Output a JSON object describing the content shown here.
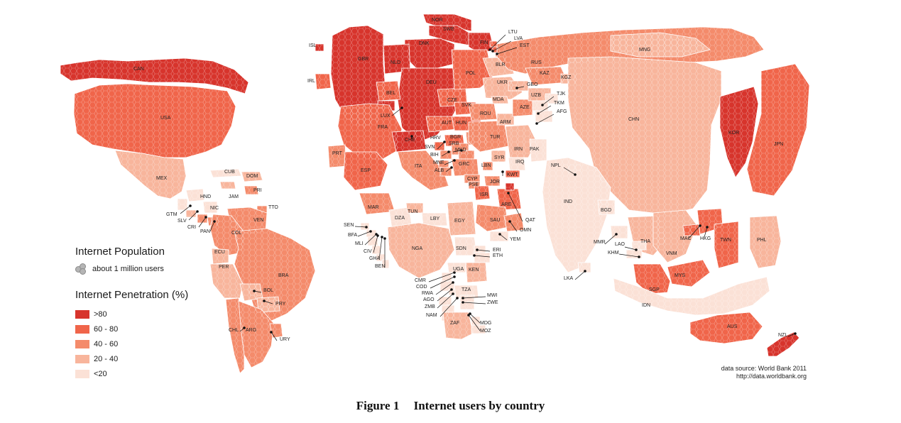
{
  "colors": {
    "gt80": "#d7342c",
    "60_80": "#f0654a",
    "40_60": "#f48b6b",
    "20_40": "#f8b59c",
    "lt20": "#fbe1d6"
  },
  "legend": {
    "population_title": "Internet Population",
    "population_item": "about 1 million users",
    "penetration_title": "Internet Penetration (%)",
    "items": [
      {
        "label": ">80",
        "color": "#d7342c"
      },
      {
        "label": "60 - 80",
        "color": "#f0654a"
      },
      {
        "label": "40 - 60",
        "color": "#f48b6b"
      },
      {
        "label": "20 - 40",
        "color": "#f8b59c"
      },
      {
        "label": "<20",
        "color": "#fbe1d6"
      }
    ]
  },
  "source": {
    "line1": "data source: World Bank 2011",
    "line2": "http://data.worldbank.org"
  },
  "caption": {
    "number": "Figure 1",
    "title": "Internet users by country"
  },
  "countries": [
    {
      "code": "CAN",
      "cls": "gt80"
    },
    {
      "code": "USA",
      "cls": "60_80"
    },
    {
      "code": "MEX",
      "cls": "20_40"
    },
    {
      "code": "CUB",
      "cls": "lt20"
    },
    {
      "code": "DOM",
      "cls": "20_40"
    },
    {
      "code": "JAM",
      "cls": "20_40"
    },
    {
      "code": "PRI",
      "cls": "40_60"
    },
    {
      "code": "HND",
      "cls": "lt20"
    },
    {
      "code": "NIC",
      "cls": "lt20"
    },
    {
      "code": "GTM",
      "cls": "lt20"
    },
    {
      "code": "SLV",
      "cls": "20_40"
    },
    {
      "code": "CRI",
      "cls": "40_60"
    },
    {
      "code": "PAN",
      "cls": "40_60"
    },
    {
      "code": "TTO",
      "cls": "40_60"
    },
    {
      "code": "VEN",
      "cls": "40_60"
    },
    {
      "code": "COL",
      "cls": "40_60"
    },
    {
      "code": "ECU",
      "cls": "20_40"
    },
    {
      "code": "PER",
      "cls": "20_40"
    },
    {
      "code": "BRA",
      "cls": "40_60"
    },
    {
      "code": "BOL",
      "cls": "20_40"
    },
    {
      "code": "PRY",
      "cls": "20_40"
    },
    {
      "code": "CHL",
      "cls": "40_60"
    },
    {
      "code": "ARG",
      "cls": "40_60"
    },
    {
      "code": "URY",
      "cls": "40_60"
    },
    {
      "code": "ISL",
      "cls": "gt80"
    },
    {
      "code": "IRL",
      "cls": "60_80"
    },
    {
      "code": "GBR",
      "cls": "gt80"
    },
    {
      "code": "NOR",
      "cls": "gt80"
    },
    {
      "code": "SWE",
      "cls": "gt80"
    },
    {
      "code": "DNK",
      "cls": "gt80"
    },
    {
      "code": "FIN",
      "cls": "gt80"
    },
    {
      "code": "NLD",
      "cls": "gt80"
    },
    {
      "code": "DEU",
      "cls": "gt80"
    },
    {
      "code": "BEL",
      "cls": "60_80"
    },
    {
      "code": "LUX",
      "cls": "gt80"
    },
    {
      "code": "FRA",
      "cls": "60_80"
    },
    {
      "code": "CHE",
      "cls": "gt80"
    },
    {
      "code": "AUT",
      "cls": "60_80"
    },
    {
      "code": "CZE",
      "cls": "60_80"
    },
    {
      "code": "POL",
      "cls": "60_80"
    },
    {
      "code": "SVK",
      "cls": "60_80"
    },
    {
      "code": "HUN",
      "cls": "60_80"
    },
    {
      "code": "PRT",
      "cls": "40_60"
    },
    {
      "code": "ESP",
      "cls": "60_80"
    },
    {
      "code": "ITA",
      "cls": "40_60"
    },
    {
      "code": "LTU",
      "cls": "60_80"
    },
    {
      "code": "LVA",
      "cls": "60_80"
    },
    {
      "code": "EST",
      "cls": "60_80"
    },
    {
      "code": "BLR",
      "cls": "20_40"
    },
    {
      "code": "RUS",
      "cls": "40_60"
    },
    {
      "code": "UKR",
      "cls": "20_40"
    },
    {
      "code": "MDA",
      "cls": "20_40"
    },
    {
      "code": "ROU",
      "cls": "40_60"
    },
    {
      "code": "BGR",
      "cls": "40_60"
    },
    {
      "code": "HRV",
      "cls": "60_80"
    },
    {
      "code": "SVN",
      "cls": "60_80"
    },
    {
      "code": "SRB",
      "cls": "40_60"
    },
    {
      "code": "BIH",
      "cls": "40_60"
    },
    {
      "code": "MNE",
      "cls": "40_60"
    },
    {
      "code": "MKD",
      "cls": "40_60"
    },
    {
      "code": "ALB",
      "cls": "40_60"
    },
    {
      "code": "GRC",
      "cls": "40_60"
    },
    {
      "code": "TUR",
      "cls": "40_60"
    },
    {
      "code": "CYP",
      "cls": "40_60"
    },
    {
      "code": "GEO",
      "cls": "20_40"
    },
    {
      "code": "ARM",
      "cls": "20_40"
    },
    {
      "code": "AZE",
      "cls": "40_60"
    },
    {
      "code": "KAZ",
      "cls": "40_60"
    },
    {
      "code": "KGZ",
      "cls": "20_40"
    },
    {
      "code": "UZB",
      "cls": "20_40"
    },
    {
      "code": "TJK",
      "cls": "lt20"
    },
    {
      "code": "TKM",
      "cls": "lt20"
    },
    {
      "code": "AFG",
      "cls": "lt20"
    },
    {
      "code": "MNG",
      "cls": "20_40"
    },
    {
      "code": "CHN",
      "cls": "20_40"
    },
    {
      "code": "KOR",
      "cls": "gt80"
    },
    {
      "code": "JPN",
      "cls": "60_80"
    },
    {
      "code": "IRN",
      "cls": "20_40"
    },
    {
      "code": "PAK",
      "cls": "lt20"
    },
    {
      "code": "NPL",
      "cls": "lt20"
    },
    {
      "code": "IND",
      "cls": "lt20"
    },
    {
      "code": "BGD",
      "cls": "lt20"
    },
    {
      "code": "SYR",
      "cls": "20_40"
    },
    {
      "code": "IRQ",
      "cls": "lt20"
    },
    {
      "code": "LBN",
      "cls": "40_60"
    },
    {
      "code": "KWT",
      "cls": "60_80"
    },
    {
      "code": "PSE",
      "cls": "40_60"
    },
    {
      "code": "JOR",
      "cls": "40_60"
    },
    {
      "code": "ISR",
      "cls": "60_80"
    },
    {
      "code": "ARE",
      "cls": "60_80"
    },
    {
      "code": "QAT",
      "cls": "gt80"
    },
    {
      "code": "SAU",
      "cls": "40_60"
    },
    {
      "code": "OMN",
      "cls": "40_60"
    },
    {
      "code": "YEM",
      "cls": "lt20"
    },
    {
      "code": "MAR",
      "cls": "40_60"
    },
    {
      "code": "DZA",
      "cls": "lt20"
    },
    {
      "code": "TUN",
      "cls": "20_40"
    },
    {
      "code": "LBY",
      "cls": "lt20"
    },
    {
      "code": "EGY",
      "cls": "20_40"
    },
    {
      "code": "SEN",
      "cls": "lt20"
    },
    {
      "code": "BFA",
      "cls": "lt20"
    },
    {
      "code": "MLI",
      "cls": "lt20"
    },
    {
      "code": "CIV",
      "cls": "lt20"
    },
    {
      "code": "GHA",
      "cls": "lt20"
    },
    {
      "code": "BEN",
      "cls": "lt20"
    },
    {
      "code": "NGA",
      "cls": "20_40"
    },
    {
      "code": "SDN",
      "cls": "lt20"
    },
    {
      "code": "ERI",
      "cls": "lt20"
    },
    {
      "code": "ETH",
      "cls": "lt20"
    },
    {
      "code": "UGA",
      "cls": "lt20"
    },
    {
      "code": "KEN",
      "cls": "20_40"
    },
    {
      "code": "CMR",
      "cls": "lt20"
    },
    {
      "code": "COD",
      "cls": "lt20"
    },
    {
      "code": "RWA",
      "cls": "lt20"
    },
    {
      "code": "TZA",
      "cls": "lt20"
    },
    {
      "code": "AGO",
      "cls": "lt20"
    },
    {
      "code": "MWI",
      "cls": "lt20"
    },
    {
      "code": "ZWE",
      "cls": "lt20"
    },
    {
      "code": "ZMB",
      "cls": "lt20"
    },
    {
      "code": "NAM",
      "cls": "lt20"
    },
    {
      "code": "ZAF",
      "cls": "20_40"
    },
    {
      "code": "MDG",
      "cls": "lt20"
    },
    {
      "code": "MOZ",
      "cls": "lt20"
    },
    {
      "code": "MMR",
      "cls": "lt20"
    },
    {
      "code": "THA",
      "cls": "20_40"
    },
    {
      "code": "LAO",
      "cls": "lt20"
    },
    {
      "code": "KHM",
      "cls": "lt20"
    },
    {
      "code": "VNM",
      "cls": "20_40"
    },
    {
      "code": "MAC",
      "cls": "60_80"
    },
    {
      "code": "HKG",
      "cls": "60_80"
    },
    {
      "code": "TWN",
      "cls": "60_80"
    },
    {
      "code": "PHL",
      "cls": "20_40"
    },
    {
      "code": "LKA",
      "cls": "lt20"
    },
    {
      "code": "MYS",
      "cls": "60_80"
    },
    {
      "code": "SGP",
      "cls": "60_80"
    },
    {
      "code": "IDN",
      "cls": "lt20"
    },
    {
      "code": "AUS",
      "cls": "60_80"
    },
    {
      "code": "NZL",
      "cls": "gt80"
    }
  ]
}
